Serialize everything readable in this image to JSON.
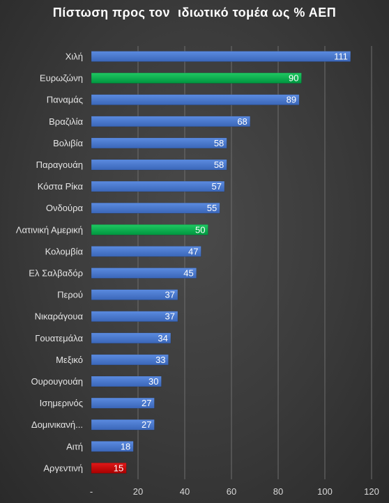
{
  "chart_data": {
    "type": "bar",
    "orientation": "horizontal",
    "title": "Πίστωση προς τον  ιδιωτικό τομέα ως % ΑΕΠ",
    "xlabel": "",
    "ylabel": "",
    "xlim": [
      0,
      120
    ],
    "x_ticks": [
      "-",
      "20",
      "40",
      "60",
      "80",
      "100",
      "120"
    ],
    "grid": "vertical",
    "legend": "none",
    "colors": {
      "default": "#4472C4",
      "highlight_green": "#00B050",
      "highlight_red": "#C00000"
    },
    "categories": [
      "Χιλή",
      "Ευρωζώνη",
      "Παναμάς",
      "Βραζιλία",
      "Βολιβία",
      "Παραγουάη",
      "Κόστα Ρίκα",
      "Ονδούρα",
      "Λατινική Αμερική",
      "Κολομβία",
      "Ελ Σαλβαδόρ",
      "Περού",
      "Νικαράγουα",
      "Γουατεμάλα",
      "Μεξικό",
      "Ουρουγουάη",
      "Ισημερινός",
      "Δομινικανή...",
      "Αιτή",
      "Αργεντινή"
    ],
    "values": [
      111,
      90,
      89,
      68,
      58,
      58,
      57,
      55,
      50,
      47,
      45,
      37,
      37,
      34,
      33,
      30,
      27,
      27,
      18,
      15
    ],
    "bar_colors": [
      "default",
      "highlight_green",
      "default",
      "default",
      "default",
      "default",
      "default",
      "default",
      "highlight_green",
      "default",
      "default",
      "default",
      "default",
      "default",
      "default",
      "default",
      "default",
      "default",
      "default",
      "highlight_red"
    ]
  }
}
